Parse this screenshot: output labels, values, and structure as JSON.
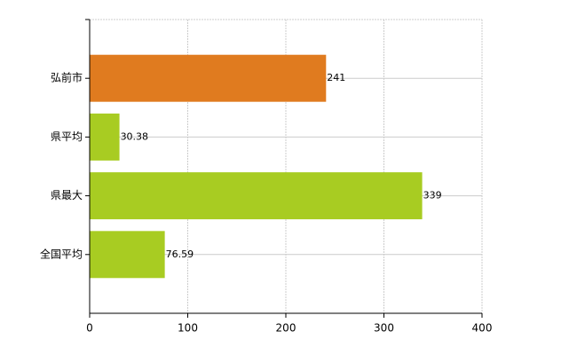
{
  "chart_data": {
    "type": "hbar",
    "categories": [
      "弘前市",
      "県平均",
      "県最大",
      "全国平均"
    ],
    "values": [
      241,
      30.38,
      339,
      76.59
    ],
    "colors": [
      "#e07b1f",
      "#a8cc22",
      "#a8cc22",
      "#a8cc22"
    ],
    "xlim": [
      0,
      400
    ],
    "xticks": [
      0,
      100,
      200,
      300,
      400
    ],
    "grid": true
  }
}
